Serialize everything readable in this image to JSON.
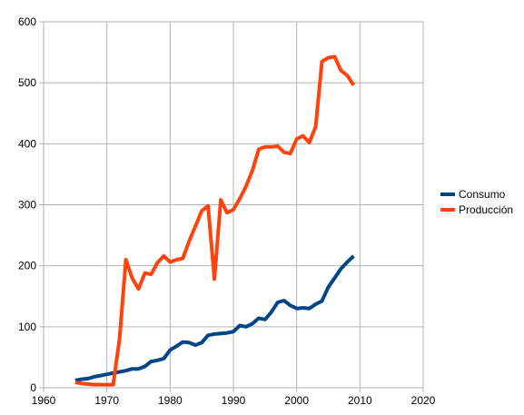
{
  "chart_data": {
    "type": "line",
    "title": "",
    "xlabel": "",
    "ylabel": "",
    "xlim": [
      1960,
      2020
    ],
    "ylim": [
      0,
      600
    ],
    "xticks": [
      1960,
      1970,
      1980,
      1990,
      2000,
      2010,
      2020
    ],
    "yticks": [
      0,
      100,
      200,
      300,
      400,
      500,
      600
    ],
    "grid": "horizontal and vertical",
    "legend_position": "right",
    "series": [
      {
        "name": "Consumo",
        "color": "#004586",
        "points": [
          [
            1965,
            12
          ],
          [
            1966,
            14
          ],
          [
            1967,
            15
          ],
          [
            1968,
            18
          ],
          [
            1969,
            20
          ],
          [
            1970,
            22
          ],
          [
            1971,
            24
          ],
          [
            1972,
            26
          ],
          [
            1973,
            28
          ],
          [
            1974,
            31
          ],
          [
            1975,
            31
          ],
          [
            1976,
            35
          ],
          [
            1977,
            43
          ],
          [
            1978,
            45
          ],
          [
            1979,
            48
          ],
          [
            1980,
            62
          ],
          [
            1981,
            68
          ],
          [
            1982,
            75
          ],
          [
            1983,
            74
          ],
          [
            1984,
            70
          ],
          [
            1985,
            74
          ],
          [
            1986,
            86
          ],
          [
            1987,
            88
          ],
          [
            1988,
            89
          ],
          [
            1989,
            90
          ],
          [
            1990,
            92
          ],
          [
            1991,
            102
          ],
          [
            1992,
            100
          ],
          [
            1993,
            105
          ],
          [
            1994,
            114
          ],
          [
            1995,
            112
          ],
          [
            1996,
            124
          ],
          [
            1997,
            140
          ],
          [
            1998,
            143
          ],
          [
            1999,
            135
          ],
          [
            2000,
            130
          ],
          [
            2001,
            131
          ],
          [
            2002,
            130
          ],
          [
            2003,
            137
          ],
          [
            2004,
            142
          ],
          [
            2005,
            165
          ],
          [
            2006,
            180
          ],
          [
            2007,
            195
          ],
          [
            2008,
            206
          ],
          [
            2009,
            216
          ]
        ]
      },
      {
        "name": "Producción",
        "color": "#ff420e",
        "points": [
          [
            1965,
            9
          ],
          [
            1966,
            7
          ],
          [
            1967,
            6
          ],
          [
            1968,
            5
          ],
          [
            1969,
            5
          ],
          [
            1970,
            5
          ],
          [
            1971,
            5
          ],
          [
            1972,
            80
          ],
          [
            1973,
            210
          ],
          [
            1974,
            180
          ],
          [
            1975,
            162
          ],
          [
            1976,
            188
          ],
          [
            1977,
            186
          ],
          [
            1978,
            205
          ],
          [
            1979,
            216
          ],
          [
            1980,
            206
          ],
          [
            1981,
            210
          ],
          [
            1982,
            212
          ],
          [
            1983,
            240
          ],
          [
            1984,
            265
          ],
          [
            1985,
            290
          ],
          [
            1986,
            298
          ],
          [
            1987,
            178
          ],
          [
            1988,
            308
          ],
          [
            1989,
            287
          ],
          [
            1990,
            292
          ],
          [
            1991,
            310
          ],
          [
            1992,
            330
          ],
          [
            1993,
            356
          ],
          [
            1994,
            391
          ],
          [
            1995,
            395
          ],
          [
            1996,
            395
          ],
          [
            1997,
            396
          ],
          [
            1998,
            386
          ],
          [
            1999,
            384
          ],
          [
            2000,
            408
          ],
          [
            2001,
            413
          ],
          [
            2002,
            402
          ],
          [
            2003,
            428
          ],
          [
            2004,
            535
          ],
          [
            2005,
            541
          ],
          [
            2006,
            543
          ],
          [
            2007,
            520
          ],
          [
            2008,
            512
          ],
          [
            2009,
            496
          ]
        ]
      }
    ]
  }
}
